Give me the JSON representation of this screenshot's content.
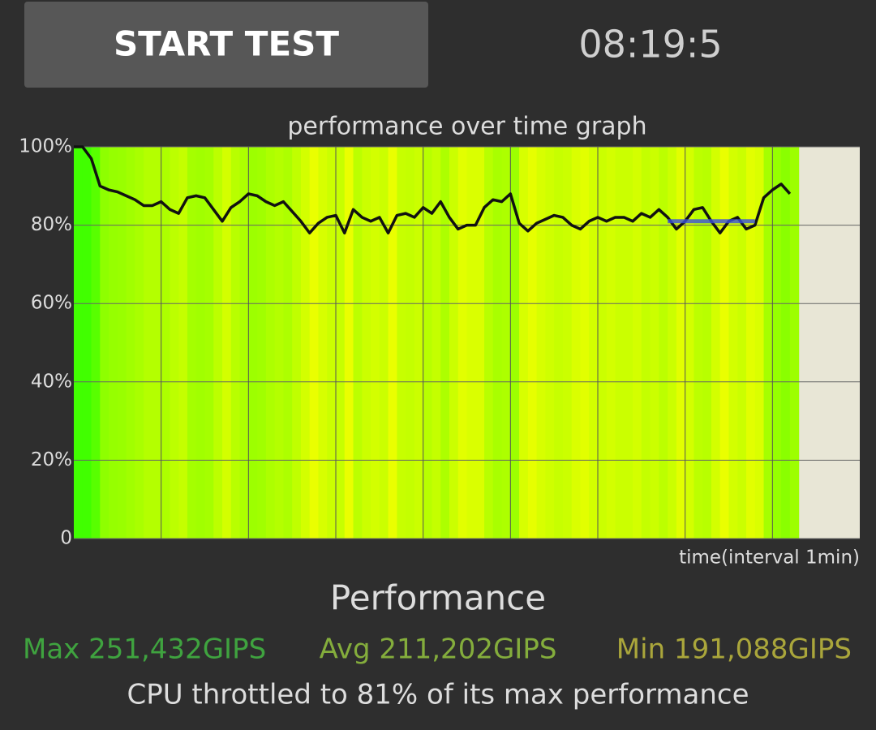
{
  "button": "START TEST",
  "clock": "08:19:5",
  "chart_data": {
    "type": "line",
    "title": "performance over time graph",
    "x_label": "time(interval 1min)",
    "x": [
      0,
      0.1,
      0.2,
      0.3,
      0.4,
      0.5,
      0.6,
      0.7,
      0.8,
      0.9,
      1,
      1.1,
      1.2,
      1.3,
      1.4,
      1.5,
      1.6,
      1.7,
      1.8,
      1.9,
      2,
      2.1,
      2.2,
      2.3,
      2.4,
      2.5,
      2.6,
      2.7,
      2.8,
      2.9,
      3,
      3.1,
      3.2,
      3.3,
      3.4,
      3.5,
      3.6,
      3.7,
      3.8,
      3.9,
      4,
      4.1,
      4.2,
      4.3,
      4.4,
      4.5,
      4.6,
      4.7,
      4.8,
      4.9,
      5,
      5.1,
      5.2,
      5.3,
      5.4,
      5.5,
      5.6,
      5.7,
      5.8,
      5.9,
      6,
      6.1,
      6.2,
      6.3,
      6.4,
      6.5,
      6.6,
      6.7,
      6.8,
      6.9,
      7,
      7.1,
      7.2,
      7.3,
      7.4,
      7.5,
      7.6,
      7.7,
      7.8,
      7.9,
      8,
      8.1,
      8.2
    ],
    "values": [
      100,
      100,
      97,
      90,
      89,
      88.5,
      87.5,
      86.5,
      85,
      85,
      86,
      84,
      83,
      87,
      87.5,
      87,
      84,
      81,
      84.5,
      86,
      88,
      87.5,
      86,
      85,
      86,
      83.5,
      81,
      78,
      80.5,
      82,
      82.5,
      78,
      84,
      82,
      81,
      82,
      78,
      82.5,
      83,
      82,
      84.5,
      83,
      86,
      82,
      79,
      80,
      80,
      84.5,
      86.5,
      86,
      88,
      80.5,
      78.5,
      80.5,
      81.5,
      82.5,
      82,
      80,
      79,
      81,
      82,
      81,
      82,
      82,
      81,
      83,
      82,
      84,
      82,
      79,
      81,
      84,
      84.5,
      81,
      78,
      81,
      82,
      79,
      80,
      87,
      89,
      90.5,
      88
    ],
    "color": "#111111",
    "marker": {
      "x": [
        6.8,
        7.8
      ],
      "y": 81,
      "color": "#3a4fe0"
    },
    "xlim": [
      0,
      9
    ],
    "xticks": [
      1,
      2,
      3,
      4,
      5,
      6,
      7,
      8
    ],
    "ylim": [
      0,
      100
    ],
    "yticks": [
      0,
      {
        "value": 20,
        "label": "20%"
      },
      {
        "value": 40,
        "label": "40%"
      },
      {
        "value": 60,
        "label": "60%"
      },
      {
        "value": 80,
        "label": "80%"
      },
      {
        "value": 100,
        "label": "100%"
      }
    ],
    "grid": true
  },
  "performance": {
    "title": "Performance",
    "max": "Max 251,432GIPS",
    "avg": "Avg 211,202GIPS",
    "min": "Min 191,088GIPS",
    "summary": "CPU throttled to 81% of its max performance"
  }
}
